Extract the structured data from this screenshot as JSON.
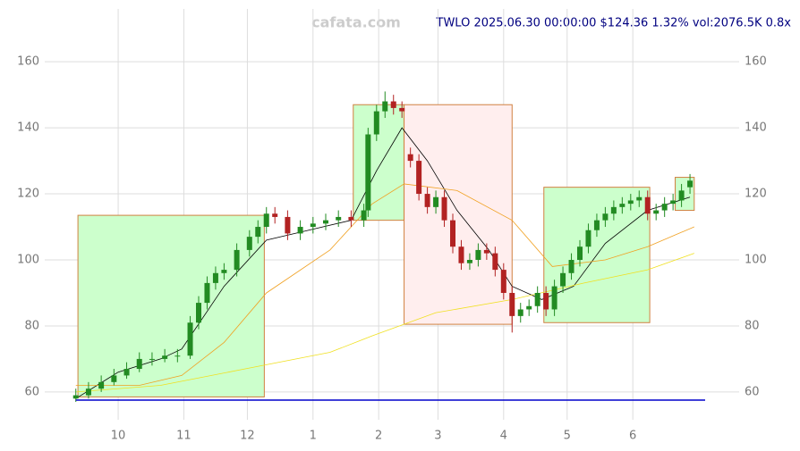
{
  "chart_data": {
    "type": "candlestick",
    "title": "TWLO 2025.06.30 00:00:00 $124.36 1.32% vol:2076.5K 0.8x",
    "watermark": "cafata.com",
    "x": [
      -20,
      -14,
      -8,
      -2,
      4,
      10,
      16,
      22,
      28,
      34,
      38,
      42,
      46,
      50,
      56,
      62,
      66,
      70,
      74,
      80,
      86,
      92,
      98,
      104,
      110,
      116,
      118,
      122,
      126,
      130,
      134,
      138,
      142,
      146,
      150,
      154,
      158,
      162,
      166,
      170,
      174,
      178,
      182,
      186,
      190,
      194,
      198,
      202,
      206,
      210,
      214,
      218,
      222,
      226,
      230,
      234,
      238,
      242,
      246,
      250,
      254,
      258,
      262,
      266,
      270
    ],
    "open": [
      58,
      59,
      61,
      63,
      65,
      67,
      70,
      70,
      71,
      71,
      81,
      87,
      93,
      96,
      97,
      103,
      107,
      110,
      114,
      113,
      108,
      110,
      111,
      112,
      113,
      112,
      115,
      138,
      145,
      148,
      146,
      132,
      130,
      120,
      116,
      119,
      112,
      104,
      99,
      100,
      103,
      102,
      97,
      90,
      83,
      85,
      86,
      90,
      85,
      92,
      96,
      100,
      104,
      109,
      112,
      114,
      116,
      117,
      118,
      119,
      114,
      115,
      117,
      118,
      122
    ],
    "high": [
      61,
      63,
      65,
      67,
      69,
      72,
      72,
      73,
      73,
      83,
      89,
      95,
      98,
      99,
      105,
      109,
      112,
      116,
      116,
      115,
      112,
      113,
      114,
      115,
      115,
      117,
      140,
      147,
      151,
      150,
      148,
      134,
      132,
      122,
      121,
      121,
      114,
      106,
      102,
      105,
      105,
      104,
      99,
      92,
      87,
      88,
      92,
      92,
      94,
      98,
      102,
      106,
      111,
      114,
      116,
      118,
      119,
      120,
      121,
      121,
      117,
      119,
      120,
      123,
      126
    ],
    "low": [
      57,
      58,
      60,
      62,
      64,
      66,
      68,
      69,
      69,
      70,
      79,
      85,
      91,
      94,
      95,
      101,
      105,
      108,
      111,
      106,
      106,
      108,
      109,
      110,
      110,
      110,
      113,
      136,
      143,
      144,
      143,
      128,
      118,
      114,
      114,
      110,
      102,
      97,
      97,
      98,
      100,
      95,
      88,
      78,
      81,
      83,
      84,
      83,
      83,
      90,
      94,
      98,
      102,
      107,
      110,
      112,
      114,
      115,
      116,
      112,
      112,
      113,
      115,
      116,
      120
    ],
    "close": [
      59,
      61,
      63,
      65,
      67,
      70,
      70,
      71,
      71,
      81,
      87,
      93,
      96,
      97,
      103,
      107,
      110,
      114,
      113,
      108,
      110,
      111,
      112,
      113,
      112,
      115,
      138,
      145,
      148,
      146,
      145,
      130,
      120,
      116,
      119,
      112,
      104,
      99,
      100,
      103,
      102,
      97,
      90,
      83,
      85,
      86,
      90,
      85,
      92,
      96,
      100,
      104,
      109,
      112,
      114,
      116,
      117,
      118,
      119,
      114,
      115,
      117,
      118,
      121,
      124
    ],
    "up_color": "#228b22",
    "down_color": "#b22222",
    "boxes": [
      {
        "x": [
          -19,
          69
        ],
        "y": [
          58.5,
          113.5
        ],
        "color": "#ccffcc"
      },
      {
        "x": [
          111,
          135
        ],
        "y": [
          112,
          147
        ],
        "color": "#ccffcc"
      },
      {
        "x": [
          135,
          186
        ],
        "y": [
          80.5,
          147
        ],
        "color": "#ffeeee"
      },
      {
        "x": [
          201,
          251
        ],
        "y": [
          81,
          122
        ],
        "color": "#ccffcc"
      },
      {
        "x": [
          263,
          272
        ],
        "y": [
          115,
          125
        ],
        "color": "#ccffcc"
      }
    ],
    "lines": [
      {
        "color": "#000000",
        "x": [
          -20,
          0,
          20,
          30,
          50,
          70,
          90,
          110,
          122,
          134,
          146,
          160,
          175,
          186,
          200,
          215,
          230,
          250,
          270
        ],
        "values": [
          58,
          66,
          70,
          73,
          92,
          106,
          109,
          112,
          127,
          140,
          130,
          115,
          103,
          92,
          88,
          92,
          105,
          115,
          119
        ]
      },
      {
        "color": "#f0a020",
        "x": [
          -20,
          10,
          30,
          50,
          70,
          100,
          120,
          135,
          160,
          186,
          205,
          230,
          250,
          272
        ],
        "values": [
          62,
          62,
          65,
          75,
          90,
          103,
          117,
          123,
          121,
          112,
          98,
          100,
          104,
          110
        ]
      },
      {
        "color": "#f0e020",
        "x": [
          -20,
          20,
          60,
          100,
          120,
          150,
          186,
          220,
          250,
          272
        ],
        "values": [
          60,
          62,
          67,
          72,
          77,
          84,
          88,
          93,
          97,
          102
        ]
      }
    ],
    "xlim": [
      -22,
      278
    ],
    "xticks": [
      {
        "value": 0,
        "label": "10"
      },
      {
        "value": 31,
        "label": "11"
      },
      {
        "value": 61,
        "label": "12"
      },
      {
        "value": 92,
        "label": "1"
      },
      {
        "value": 123,
        "label": "2"
      },
      {
        "value": 151,
        "label": "3"
      },
      {
        "value": 182,
        "label": "4"
      },
      {
        "value": 212,
        "label": "5"
      },
      {
        "value": 243,
        "label": "6"
      }
    ],
    "ylim": [
      57,
      176
    ],
    "yticks": [
      60,
      80,
      100,
      120,
      140,
      160
    ],
    "grid": true
  }
}
